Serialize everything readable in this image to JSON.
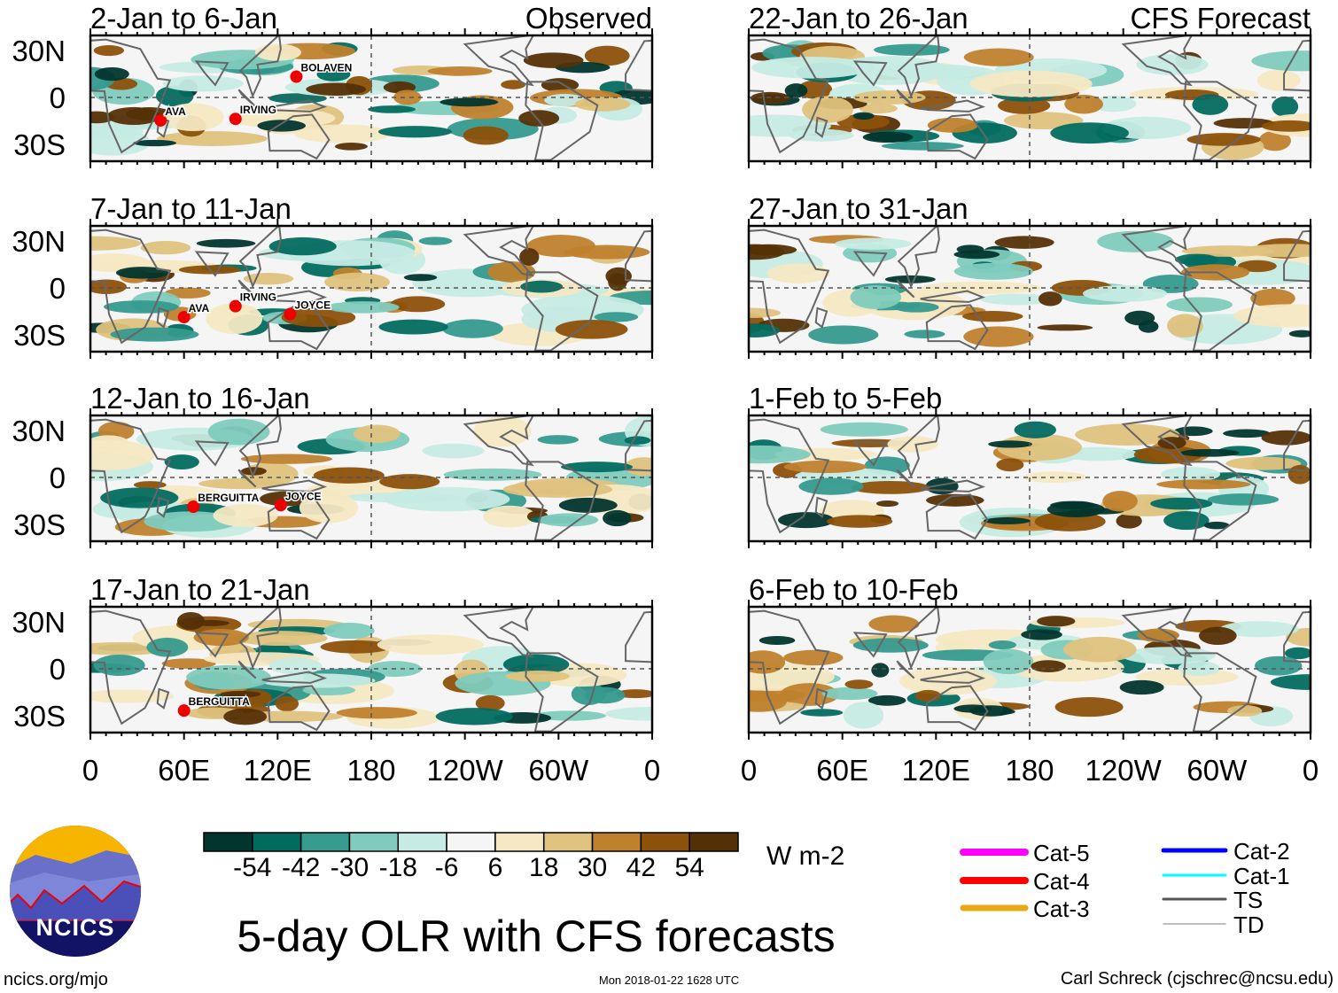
{
  "panels": [
    {
      "title": "2-Jan to 6-Jan",
      "corner_label": "Observed",
      "storms": [
        "AVA",
        "IRVING",
        "BOLAVEN"
      ]
    },
    {
      "title": "7-Jan to 11-Jan",
      "storms": [
        "AVA",
        "IRVING",
        "JOYCE"
      ]
    },
    {
      "title": "12-Jan to 16-Jan",
      "storms": [
        "BERGUITTA",
        "JOYCE"
      ]
    },
    {
      "title": "17-Jan to 21-Jan",
      "storms": [
        "BERGUITTA"
      ]
    },
    {
      "title": "22-Jan to 26-Jan",
      "corner_label": "CFS Forecast",
      "storms": []
    },
    {
      "title": "27-Jan to 31-Jan",
      "storms": []
    },
    {
      "title": "1-Feb to 5-Feb",
      "storms": []
    },
    {
      "title": "6-Feb to 10-Feb",
      "storms": []
    }
  ],
  "lat_labels": [
    "30N",
    "0",
    "30S"
  ],
  "lon_labels": [
    "0",
    "60E",
    "120E",
    "180",
    "120W",
    "60W",
    "0"
  ],
  "colorbar": {
    "colors": [
      "#01352d",
      "#026b60",
      "#369a8e",
      "#80cbbd",
      "#c6ebe4",
      "#f5f5f5",
      "#f6e8c3",
      "#dfc27d",
      "#bf812d",
      "#8c510a",
      "#553006"
    ],
    "tick_labels": [
      "-54",
      "-42",
      "-30",
      "-18",
      "-6",
      "6",
      "18",
      "30",
      "42",
      "54"
    ],
    "units": "W m-2"
  },
  "legend": [
    {
      "label": "Cat-5",
      "color": "#ff00ff"
    },
    {
      "label": "Cat-4",
      "color": "#ff0000"
    },
    {
      "label": "Cat-3",
      "color": "#e8a818"
    },
    {
      "label": "Cat-2",
      "color": "#0000ff"
    },
    {
      "label": "Cat-1",
      "color": "#00ffff"
    },
    {
      "label": "TS",
      "color": "#555555"
    },
    {
      "label": "TD",
      "color": "#aaaaaa"
    }
  ],
  "title": "5-day OLR with CFS forecasts",
  "logo_text": "NCICS",
  "footer": {
    "url": "ncics.org/mjo",
    "timestamp": "Mon 2018-01-22 1628 UTC",
    "author": "Carl Schreck (cjschrec@ncsu.edu)"
  }
}
